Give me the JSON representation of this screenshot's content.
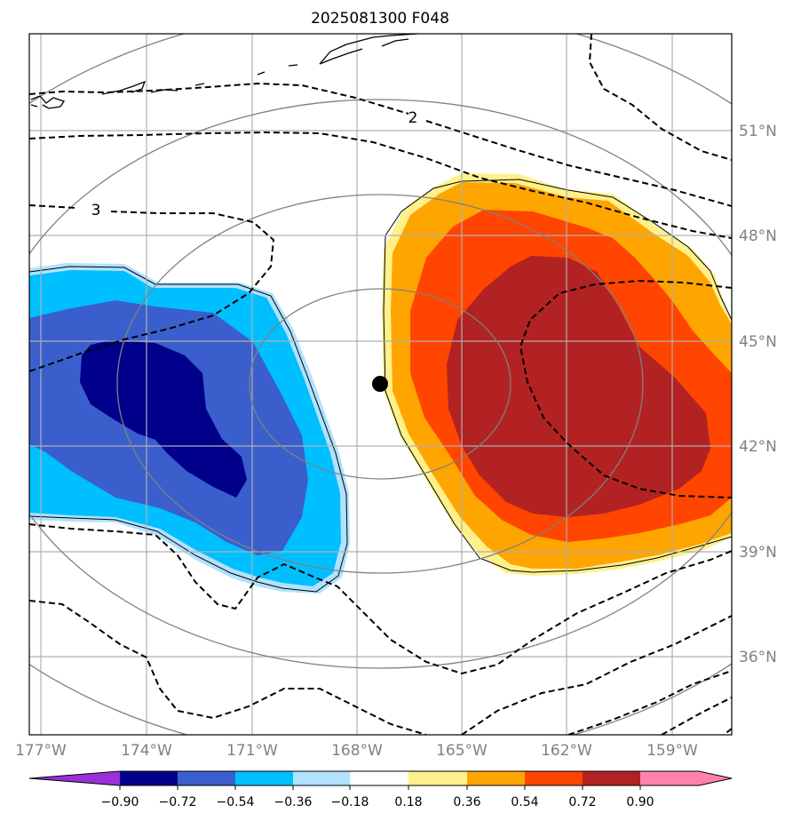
{
  "title": "2025081300 F048",
  "longitude_labels": [
    "177°W",
    "174°W",
    "171°W",
    "168°W",
    "165°W",
    "162°W",
    "159°W"
  ],
  "latitude_labels": [
    "51°N",
    "48°N",
    "45°N",
    "42°N",
    "39°N",
    "36°N"
  ],
  "contour_labels": [
    "2",
    "3"
  ],
  "colorbar": {
    "tick_labels": [
      "−0.90",
      "−0.72",
      "−0.54",
      "−0.36",
      "−0.18",
      "0.18",
      "0.36",
      "0.54",
      "0.72",
      "0.90"
    ],
    "colors": [
      "#9b30d9",
      "#00008b",
      "#3a5fcd",
      "#00bfff",
      "#b0e2ff",
      "#ffffff",
      "#fff08c",
      "#ffa500",
      "#ff4500",
      "#b22222",
      "#ff82ab"
    ]
  },
  "colors": {
    "cyclone_center": "#000000",
    "frame": "#000000",
    "grid": "#b0b0b0",
    "range_rings": "#808080"
  }
}
